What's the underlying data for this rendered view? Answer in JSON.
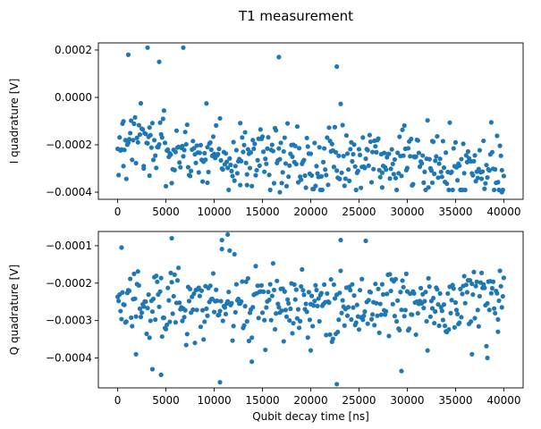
{
  "title": "T1 measurement",
  "colors": {
    "points": "#1f77b4",
    "axes": "#000000",
    "background": "#ffffff"
  },
  "chart_data": [
    {
      "type": "scatter",
      "panel": "top",
      "xlabel": "",
      "ylabel": "I quadrature [V]",
      "xlim": [
        -2000,
        42000
      ],
      "ylim": [
        -0.00043,
        0.00023
      ],
      "xticks": [
        0,
        5000,
        10000,
        15000,
        20000,
        25000,
        30000,
        35000,
        40000
      ],
      "xtick_labels": [
        "0",
        "5000",
        "10000",
        "15000",
        "20000",
        "25000",
        "30000",
        "35000",
        "40000"
      ],
      "yticks": [
        -0.0004,
        -0.0002,
        0.0,
        0.0002
      ],
      "ytick_labels": [
        "−0.0004",
        "−0.0002",
        "0.0000",
        "0.0002"
      ],
      "x_start": 0,
      "x_step": 100,
      "n_points": 401,
      "trend": {
        "A": 0.00013,
        "T1": 12000,
        "offset": -0.00029
      },
      "noise_sd": 7.5e-05,
      "highlight_points": [
        [
          3100,
          0.00021
        ],
        [
          6800,
          0.00021
        ],
        [
          1100,
          0.00018
        ],
        [
          4300,
          0.00015
        ],
        [
          16700,
          0.00017
        ],
        [
          22700,
          0.00013
        ],
        [
          16800,
          -0.0004
        ],
        [
          39800,
          -0.0004
        ],
        [
          13400,
          -0.00037
        ],
        [
          27400,
          -0.00038
        ],
        [
          12700,
          -0.00037
        ],
        [
          32600,
          -0.00036
        ],
        [
          9300,
          -0.00036
        ],
        [
          600,
          -0.00029
        ],
        [
          3300,
          -0.00033
        ],
        [
          2700,
          -0.0003
        ]
      ]
    },
    {
      "type": "scatter",
      "panel": "bottom",
      "xlabel": "Qubit decay time [ns]",
      "ylabel": "Q quadrature [V]",
      "xlim": [
        -2000,
        42000
      ],
      "ylim": [
        -0.00048,
        -6.2e-05
      ],
      "xticks": [
        0,
        5000,
        10000,
        15000,
        20000,
        25000,
        30000,
        35000,
        40000
      ],
      "xtick_labels": [
        "0",
        "5000",
        "10000",
        "15000",
        "20000",
        "25000",
        "30000",
        "35000",
        "40000"
      ],
      "yticks": [
        -0.0004,
        -0.0003,
        -0.0002,
        -0.0001
      ],
      "ytick_labels": [
        "−0.0004",
        "−0.0003",
        "−0.0002",
        "−0.0001"
      ],
      "x_start": 0,
      "x_step": 100,
      "n_points": 401,
      "mean": -0.000255,
      "noise_sd": 4.8e-05,
      "highlight_points": [
        [
          11400,
          -7e-05
        ],
        [
          10800,
          -8.5e-05
        ],
        [
          23100,
          -8.5e-05
        ],
        [
          400,
          -0.000105
        ],
        [
          5600,
          -8e-05
        ],
        [
          22700,
          -0.00047
        ],
        [
          10600,
          -0.000465
        ],
        [
          4500,
          -0.000445
        ],
        [
          3600,
          -0.00043
        ],
        [
          29400,
          -0.000435
        ],
        [
          13900,
          -0.00041
        ],
        [
          1900,
          -0.00039
        ],
        [
          36700,
          -0.00039
        ],
        [
          38300,
          -0.0004
        ],
        [
          20000,
          -0.00038
        ],
        [
          39400,
          -0.00033
        ]
      ]
    }
  ]
}
